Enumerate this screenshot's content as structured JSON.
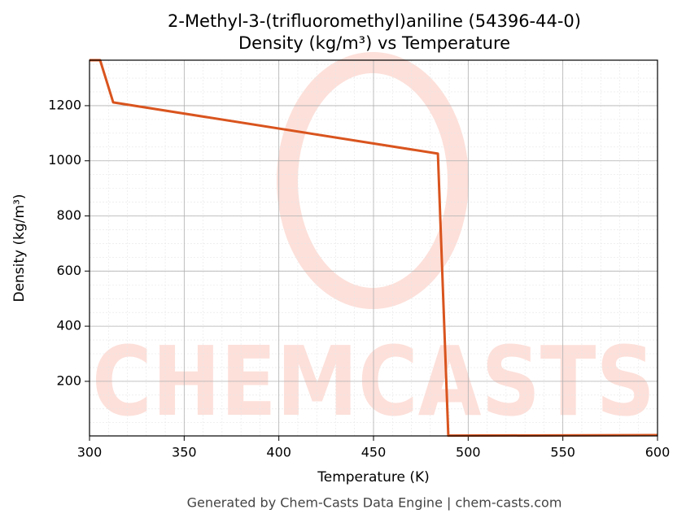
{
  "chart_data": {
    "type": "line",
    "title": "2-Methyl-3-(trifluoromethyl)aniline (54396-44-0)",
    "subtitle": "Density (kg/m³) vs Temperature",
    "x_label": "Temperature (K)",
    "y_label": "Density (kg/m³)",
    "footer": "Generated by Chem-Casts Data Engine | chem-casts.com",
    "watermark": "CHEMCASTS",
    "x": [
      300,
      305.6,
      312.5,
      484,
      489.5,
      600
    ],
    "series": [
      {
        "name": "Density",
        "color": "#d9541e",
        "values": [
          1365,
          1365,
          1212,
          1026,
          3,
          5
        ]
      }
    ],
    "xlim": [
      300,
      600
    ],
    "ylim": [
      2,
      1365
    ],
    "xticks": [
      300,
      350,
      400,
      450,
      500,
      550,
      600
    ],
    "yticks": [
      200,
      400,
      600,
      800,
      1000,
      1200
    ],
    "grid": true
  }
}
